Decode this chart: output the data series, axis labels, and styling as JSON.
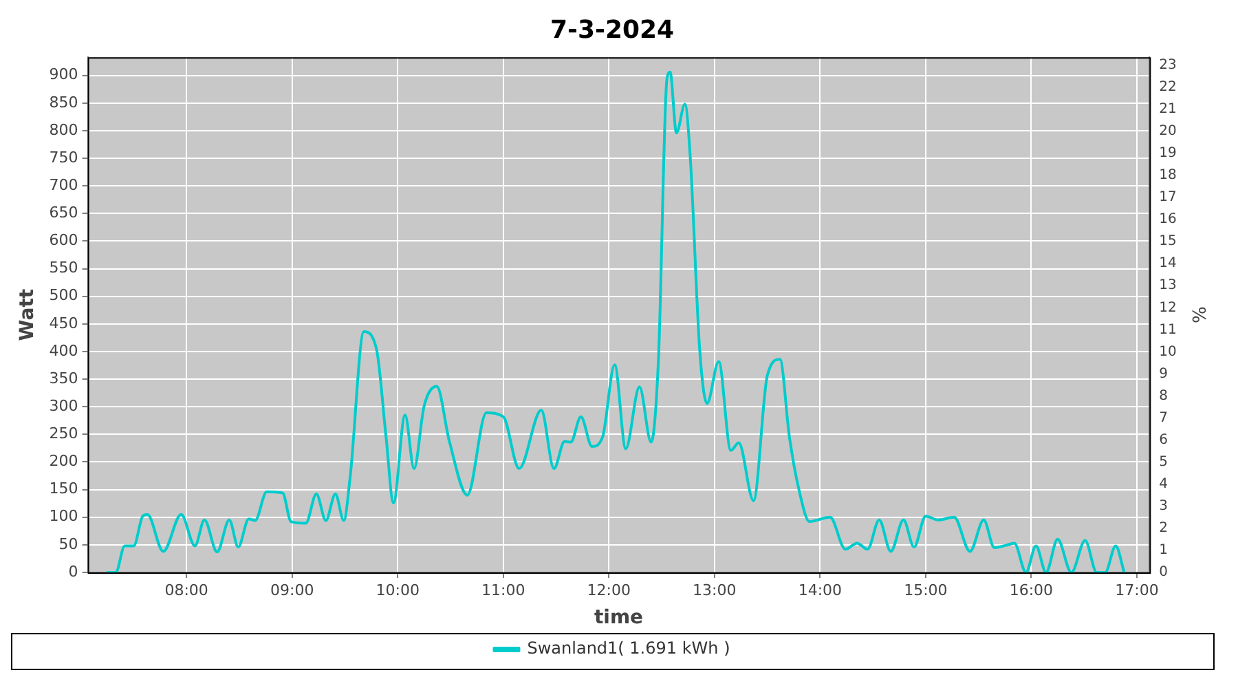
{
  "chart_data": {
    "type": "line",
    "title": "7-3-2024",
    "xlabel": "time",
    "ylabel": "Watt",
    "y2label": "%",
    "xlim": [
      7.065,
      17.12
    ],
    "xticks": [
      {
        "value": 8,
        "label": "08:00"
      },
      {
        "value": 9,
        "label": "09:00"
      },
      {
        "value": 10,
        "label": "10:00"
      },
      {
        "value": 11,
        "label": "11:00"
      },
      {
        "value": 12,
        "label": "12:00"
      },
      {
        "value": 13,
        "label": "13:00"
      },
      {
        "value": 14,
        "label": "14:00"
      },
      {
        "value": 15,
        "label": "15:00"
      },
      {
        "value": 16,
        "label": "16:00"
      },
      {
        "value": 17,
        "label": "17:00"
      }
    ],
    "ylim": [
      0,
      933
    ],
    "yticks": [
      0,
      50,
      100,
      150,
      200,
      250,
      300,
      350,
      400,
      450,
      500,
      550,
      600,
      650,
      700,
      750,
      800,
      850,
      900
    ],
    "y2lim": [
      0,
      23.36
    ],
    "y2ticks": [
      0,
      1,
      2,
      3,
      4,
      5,
      6,
      7,
      8,
      9,
      10,
      11,
      12,
      13,
      14,
      15,
      16,
      17,
      18,
      19,
      20,
      21,
      22,
      23
    ],
    "grid": true,
    "legend": "bottom",
    "marker": "none",
    "line_style": "solid",
    "series": [
      {
        "name": "Swanland1( 1.691 kWh )",
        "color": "#00cccc",
        "x": [
          7.245,
          7.33,
          7.415,
          7.5,
          7.586,
          7.63,
          7.78,
          7.95,
          8.08,
          8.17,
          8.29,
          8.405,
          8.49,
          8.59,
          8.65,
          8.76,
          8.91,
          8.99,
          9.13,
          9.23,
          9.32,
          9.41,
          9.49,
          9.55,
          9.68,
          9.8,
          9.89,
          9.96,
          10.07,
          10.155,
          10.25,
          10.37,
          10.49,
          10.66,
          10.84,
          11.0,
          11.15,
          11.36,
          11.48,
          11.58,
          11.64,
          11.735,
          11.84,
          11.94,
          12.055,
          12.16,
          12.29,
          12.4,
          12.47,
          12.55,
          12.58,
          12.64,
          12.72,
          12.77,
          12.86,
          12.93,
          13.04,
          13.155,
          13.23,
          13.37,
          13.5,
          13.62,
          13.71,
          13.8,
          13.9,
          14.095,
          14.24,
          14.35,
          14.45,
          14.56,
          14.67,
          14.79,
          14.89,
          15.0,
          15.12,
          15.27,
          15.42,
          15.55,
          15.65,
          15.76,
          15.84,
          15.95,
          16.045,
          16.14,
          16.25,
          16.38,
          16.51,
          16.62,
          16.7,
          16.8,
          16.88
        ],
        "values": [
          0,
          0,
          48,
          48,
          102,
          105,
          38,
          105,
          48,
          95,
          37,
          95,
          46,
          97,
          94,
          146,
          144,
          92,
          89,
          142,
          94,
          142,
          94,
          173,
          436,
          404,
          245,
          126,
          285,
          188,
          301,
          337,
          237,
          140,
          289,
          282,
          188,
          294,
          188,
          237,
          236,
          282,
          228,
          245,
          376,
          224,
          336,
          236,
          388,
          894,
          906,
          796,
          848,
          754,
          404,
          306,
          382,
          221,
          235,
          130,
          356,
          386,
          245,
          150,
          92,
          100,
          42,
          53,
          42,
          95,
          38,
          95,
          46,
          102,
          95,
          100,
          38,
          95,
          45,
          49,
          53,
          0,
          48,
          0,
          60,
          0,
          58,
          0,
          0,
          48,
          0
        ]
      }
    ]
  }
}
